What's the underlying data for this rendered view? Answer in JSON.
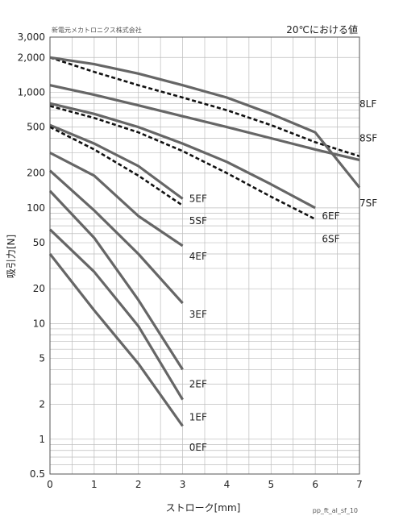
{
  "chart_data": {
    "type": "line",
    "company": "新電元メカトロニクス株式会社",
    "note": "20℃における値",
    "xlabel": "ストローク[mm]",
    "ylabel": "吸引力[N]",
    "footer": "pp_ft_al_sf_10",
    "xlim": [
      0,
      7
    ],
    "ylim": [
      0.5,
      3000
    ],
    "yscale": "log",
    "x_ticks": [
      "0",
      "1",
      "2",
      "3",
      "4",
      "5",
      "6",
      "7"
    ],
    "y_ticks": [
      {
        "v": 3000,
        "label": "3,000"
      },
      {
        "v": 2000,
        "label": "2,000"
      },
      {
        "v": 1000,
        "label": "1,000"
      },
      {
        "v": 500,
        "label": "500"
      },
      {
        "v": 200,
        "label": "200"
      },
      {
        "v": 100,
        "label": "100"
      },
      {
        "v": 50,
        "label": "50"
      },
      {
        "v": 20,
        "label": "20"
      },
      {
        "v": 10,
        "label": "10"
      },
      {
        "v": 5,
        "label": "5"
      },
      {
        "v": 2,
        "label": "2"
      },
      {
        "v": 1,
        "label": "1"
      },
      {
        "v": 0.5,
        "label": "0.5"
      }
    ],
    "grid": true,
    "series": [
      {
        "name": "8LF",
        "style": "solid",
        "label_at": [
          7,
          790
        ],
        "points": [
          [
            0,
            1150
          ],
          [
            1,
            950
          ],
          [
            2,
            770
          ],
          [
            3,
            620
          ],
          [
            4,
            500
          ],
          [
            5,
            400
          ],
          [
            6,
            320
          ],
          [
            7,
            260
          ]
        ]
      },
      {
        "name": "8SF",
        "style": "dashed",
        "label_at": [
          7,
          400
        ],
        "points": [
          [
            0,
            2000
          ],
          [
            1,
            1500
          ],
          [
            2,
            1150
          ],
          [
            3,
            900
          ],
          [
            4,
            700
          ],
          [
            5,
            520
          ],
          [
            6,
            370
          ],
          [
            7,
            280
          ]
        ]
      },
      {
        "name": "7SF",
        "style": "solid",
        "label_at": [
          7,
          110
        ],
        "points": [
          [
            0,
            2000
          ],
          [
            1,
            1750
          ],
          [
            2,
            1450
          ],
          [
            3,
            1150
          ],
          [
            4,
            900
          ],
          [
            5,
            650
          ],
          [
            6,
            450
          ],
          [
            7,
            150
          ]
        ]
      },
      {
        "name": "6EF",
        "style": "solid",
        "label_at": [
          6.15,
          85
        ],
        "points": [
          [
            0,
            800
          ],
          [
            1,
            650
          ],
          [
            2,
            500
          ],
          [
            3,
            360
          ],
          [
            4,
            250
          ],
          [
            5,
            160
          ],
          [
            6,
            100
          ]
        ]
      },
      {
        "name": "6SF",
        "style": "dashed",
        "label_at": [
          6.15,
          54
        ],
        "points": [
          [
            0,
            760
          ],
          [
            1,
            600
          ],
          [
            2,
            450
          ],
          [
            3,
            310
          ],
          [
            4,
            200
          ],
          [
            5,
            125
          ],
          [
            6,
            80
          ]
        ]
      },
      {
        "name": "5EF",
        "style": "solid",
        "label_at": [
          3.15,
          120
        ],
        "points": [
          [
            0,
            520
          ],
          [
            1,
            360
          ],
          [
            2,
            230
          ],
          [
            3,
            120
          ]
        ]
      },
      {
        "name": "5SF",
        "style": "dashed",
        "label_at": [
          3.15,
          77
        ],
        "points": [
          [
            0,
            500
          ],
          [
            1,
            320
          ],
          [
            2,
            190
          ],
          [
            3,
            105
          ]
        ]
      },
      {
        "name": "4EF",
        "style": "solid",
        "label_at": [
          3.15,
          38
        ],
        "points": [
          [
            0,
            300
          ],
          [
            1,
            190
          ],
          [
            2,
            85
          ],
          [
            3,
            47
          ]
        ]
      },
      {
        "name": "3EF",
        "style": "solid",
        "label_at": [
          3.15,
          12
        ],
        "points": [
          [
            0,
            210
          ],
          [
            1,
            95
          ],
          [
            2,
            40
          ],
          [
            3,
            15
          ]
        ]
      },
      {
        "name": "2EF",
        "style": "solid",
        "label_at": [
          3.15,
          3.0
        ],
        "points": [
          [
            0,
            140
          ],
          [
            1,
            55
          ],
          [
            2,
            16
          ],
          [
            3,
            4
          ]
        ]
      },
      {
        "name": "1EF",
        "style": "solid",
        "label_at": [
          3.15,
          1.55
        ],
        "points": [
          [
            0,
            65
          ],
          [
            1,
            28
          ],
          [
            2,
            9.5
          ],
          [
            3,
            2.2
          ]
        ]
      },
      {
        "name": "0EF",
        "style": "solid",
        "label_at": [
          3.15,
          0.85
        ],
        "points": [
          [
            0,
            40
          ],
          [
            1,
            13
          ],
          [
            2,
            4.5
          ],
          [
            3,
            1.3
          ]
        ]
      }
    ]
  }
}
